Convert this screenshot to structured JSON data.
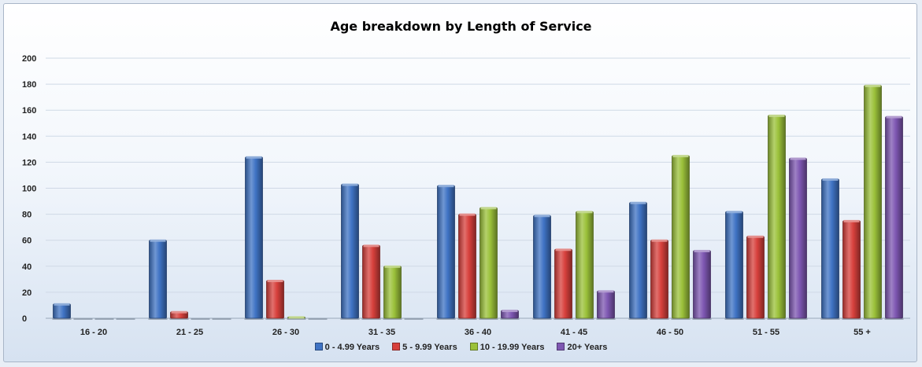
{
  "chart_data": {
    "type": "bar",
    "title": "Age breakdown by Length of Service",
    "categories": [
      "16 - 20",
      "21 - 25",
      "26 - 30",
      "31 - 35",
      "36 - 40",
      "41 - 45",
      "46 - 50",
      "51 - 55",
      "55 +"
    ],
    "series": [
      {
        "name": "0 - 4.99 Years",
        "color": "#3f73c4",
        "values": [
          11,
          60,
          124,
          103,
          102,
          79,
          89,
          82,
          107
        ]
      },
      {
        "name": "5 - 9.99 Years",
        "color": "#d7403c",
        "values": [
          0,
          5,
          29,
          56,
          80,
          53,
          60,
          63,
          75
        ]
      },
      {
        "name": "10 - 19.99 Years",
        "color": "#9bc13a",
        "values": [
          0,
          0,
          1,
          40,
          85,
          82,
          125,
          156,
          179
        ]
      },
      {
        "name": "20+ Years",
        "color": "#7e57b2",
        "values": [
          0,
          0,
          0,
          0,
          6,
          21,
          52,
          123,
          155
        ]
      }
    ],
    "yticks": [
      "0",
      "20",
      "40",
      "60",
      "80",
      "100",
      "120",
      "140",
      "160",
      "180",
      "200"
    ],
    "ylim": [
      0,
      200
    ],
    "xlabel": "",
    "ylabel": "",
    "grid": true,
    "legend_position": "bottom"
  }
}
